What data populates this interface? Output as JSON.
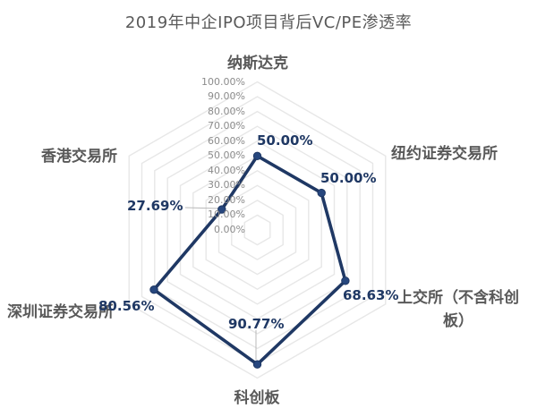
{
  "chart_data": {
    "type": "radar",
    "title": "2019年中企IPO项目背后VC/PE渗透率",
    "categories": [
      "纳斯达克",
      "纽约证券交易所",
      "上交所（不含科创板）",
      "科创板",
      "深圳证券交易所",
      "香港交易所"
    ],
    "series": [
      {
        "name": "VC/PE渗透率",
        "values": [
          50.0,
          50.0,
          68.63,
          90.77,
          80.56,
          27.69
        ]
      }
    ],
    "data_labels": [
      "50.00%",
      "50.00%",
      "68.63%",
      "90.77%",
      "80.56%",
      "27.69%"
    ],
    "axis_ticks": [
      "100.00%",
      "90.00%",
      "80.00%",
      "70.00%",
      "60.00%",
      "50.00%",
      "40.00%",
      "30.00%",
      "20.00%",
      "10.00%",
      "0.00%"
    ],
    "axis_range": [
      0,
      100
    ],
    "axis_step": 10,
    "grid": true,
    "legend_position": "none",
    "colors": {
      "series_line": "#1f3864",
      "marker_fill": "#27477e",
      "grid_line": "#e7e7e7",
      "title_text": "#595959",
      "category_text": "#595959",
      "tick_text": "#8c8c8c",
      "data_label_text": "#1f3864",
      "leader_line": "#b8b8b8",
      "background": "#ffffff"
    }
  }
}
